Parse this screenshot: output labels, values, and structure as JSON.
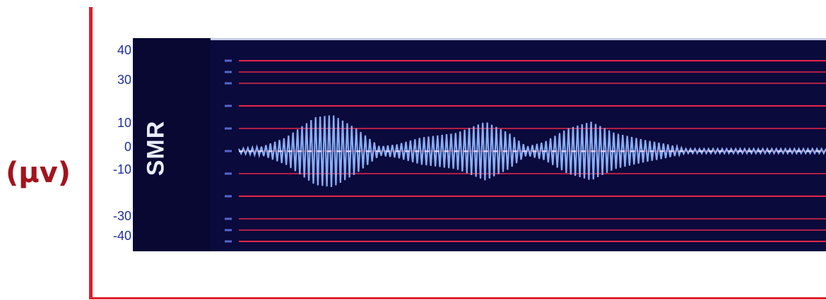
{
  "unit_label": "(μv)",
  "channel_label": "SMR",
  "colors": {
    "panel_bg": "#0a0a3c",
    "gridline": "#ff2a4a",
    "signal": "#8fb6ff",
    "tick_text": "#1f2f9e",
    "axis_line": "#e11d2a",
    "unit_text": "#a3131d"
  },
  "chart_data": {
    "type": "line",
    "title": "",
    "xlabel": "",
    "ylabel": "(μv)",
    "ylim": [
      -45,
      45
    ],
    "tick_labels": [
      "40",
      "30",
      "10",
      "0",
      "-10",
      "-30",
      "-40"
    ],
    "gridlines_y": [
      40,
      35,
      30,
      20,
      10,
      0,
      -10,
      -20,
      -30,
      -35,
      -40
    ],
    "series": [
      {
        "envelope": [
          {
            "t": 0.0,
            "amp": 1
          },
          {
            "t": 0.04,
            "amp": 2
          },
          {
            "t": 0.08,
            "amp": 6
          },
          {
            "t": 0.13,
            "amp": 15
          },
          {
            "t": 0.16,
            "amp": 16
          },
          {
            "t": 0.2,
            "amp": 10
          },
          {
            "t": 0.24,
            "amp": 2
          },
          {
            "t": 0.27,
            "amp": 3
          },
          {
            "t": 0.31,
            "amp": 6
          },
          {
            "t": 0.37,
            "amp": 8
          },
          {
            "t": 0.42,
            "amp": 13
          },
          {
            "t": 0.46,
            "amp": 8
          },
          {
            "t": 0.49,
            "amp": 2
          },
          {
            "t": 0.52,
            "amp": 4
          },
          {
            "t": 0.56,
            "amp": 10
          },
          {
            "t": 0.6,
            "amp": 13
          },
          {
            "t": 0.64,
            "amp": 8
          },
          {
            "t": 0.69,
            "amp": 5
          },
          {
            "t": 0.73,
            "amp": 3
          },
          {
            "t": 0.76,
            "amp": 1
          },
          {
            "t": 1.0,
            "amp": 1
          }
        ]
      }
    ]
  }
}
